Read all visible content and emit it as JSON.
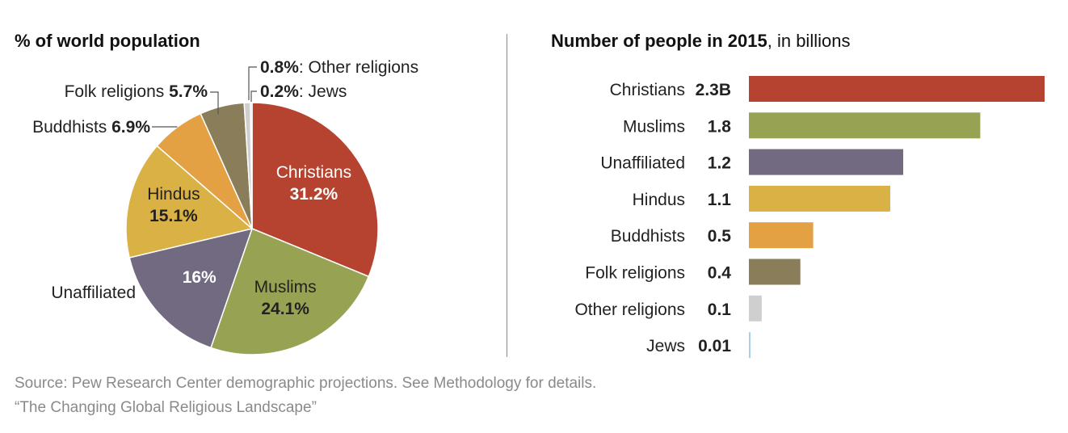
{
  "left_title": "% of world population",
  "right_title": "Number of people in 2015",
  "right_title_unit": ", in billions",
  "source": "Source: Pew Research Center demographic projections. See Methodology for details.",
  "report": "“The Changing Global Religious Landscape”",
  "chart_data": [
    {
      "type": "pie",
      "title": "% of world population",
      "slices": [
        {
          "label": "Christians",
          "value": 31.2,
          "display": "31.2%",
          "color": "#b5432f"
        },
        {
          "label": "Muslims",
          "value": 24.1,
          "display": "24.1%",
          "color": "#97a353"
        },
        {
          "label": "Unaffiliated",
          "value": 16.0,
          "display": "16%",
          "color": "#716a80"
        },
        {
          "label": "Hindus",
          "value": 15.1,
          "display": "15.1%",
          "color": "#d9b144"
        },
        {
          "label": "Buddhists",
          "value": 6.9,
          "display": "6.9%",
          "color": "#e3a144"
        },
        {
          "label": "Folk religions",
          "value": 5.7,
          "display": "5.7%",
          "color": "#8a7e5a"
        },
        {
          "label": "Other religions",
          "value": 0.8,
          "display": "0.8%",
          "color": "#cfcfcf"
        },
        {
          "label": "Jews",
          "value": 0.2,
          "display": "0.2%",
          "color": "#a9cfe6"
        }
      ]
    },
    {
      "type": "bar",
      "orientation": "horizontal",
      "title": "Number of people in 2015, in billions",
      "categories": [
        "Christians",
        "Muslims",
        "Unaffiliated",
        "Hindus",
        "Buddhists",
        "Folk religions",
        "Other religions",
        "Jews"
      ],
      "values": [
        2.3,
        1.8,
        1.2,
        1.1,
        0.5,
        0.4,
        0.1,
        0.01
      ],
      "value_labels": [
        "2.3B",
        "1.8",
        "1.2",
        "1.1",
        "0.5",
        "0.4",
        "0.1",
        "0.01"
      ],
      "colors": [
        "#b5432f",
        "#97a353",
        "#716a80",
        "#d9b144",
        "#e3a144",
        "#8a7e5a",
        "#cfcfcf",
        "#a9cfe6"
      ]
    }
  ]
}
